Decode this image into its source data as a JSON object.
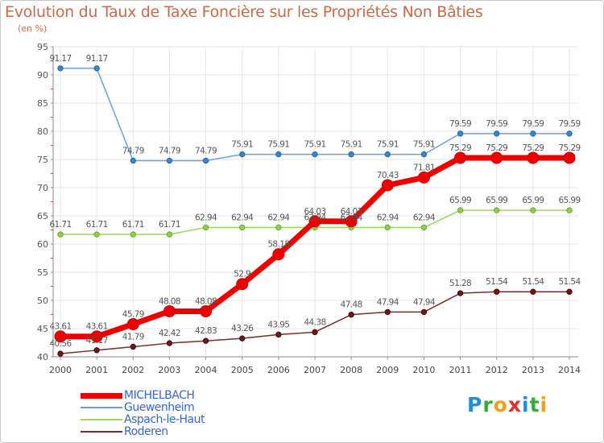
{
  "header": {
    "title": "Evolution du Taux de Taxe Foncière sur les Propriétés Non Bâties",
    "subtitle": "(en %)"
  },
  "logo": {
    "text": "Proxiti",
    "colors": [
      "#1f8fd6",
      "#3aa83a",
      "#f0a020",
      "#e03030",
      "#1f8fd6",
      "#3aa83a",
      "#f0a020"
    ]
  },
  "chart_data": {
    "type": "line",
    "title": "Evolution du Taux de Taxe Foncière sur les Propriétés Non Bâties",
    "ylabel": "(en %)",
    "xlabel": "",
    "x": [
      "2000",
      "2001",
      "2002",
      "2003",
      "2004",
      "2005",
      "2006",
      "2007",
      "2008",
      "2009",
      "2010",
      "2011",
      "2012",
      "2013",
      "2014"
    ],
    "ylim": [
      40,
      95
    ],
    "yticks": [
      40,
      45,
      50,
      55,
      60,
      65,
      70,
      75,
      80,
      85,
      90,
      95
    ],
    "grid": true,
    "series": [
      {
        "name": "MICHELBACH",
        "color": "#ee0000",
        "values": [
          43.61,
          43.61,
          45.79,
          48.08,
          48.08,
          52.9,
          58.18,
          64.03,
          64.03,
          70.43,
          71.81,
          75.29,
          75.29,
          75.29,
          75.29
        ],
        "labels": [
          "43.61",
          "43.61",
          "45.79",
          "48.08",
          "48.08",
          "52.9",
          "58.18",
          "64.03",
          "64.03",
          "70.43",
          "71.81",
          "75.29",
          "75.29",
          "75.29",
          "75.29"
        ]
      },
      {
        "name": "Guewenheim",
        "color": "#6c9fd6",
        "values": [
          91.17,
          91.17,
          74.79,
          74.79,
          74.79,
          75.91,
          75.91,
          75.91,
          75.91,
          75.91,
          75.91,
          79.59,
          79.59,
          79.59,
          79.59
        ],
        "labels": [
          "91.17",
          "91.17",
          "74.79",
          "74.79",
          "74.79",
          "75.91",
          "75.91",
          "75.91",
          "75.91",
          "75.91",
          "75.91",
          "79.59",
          "79.59",
          "79.59",
          "79.59"
        ]
      },
      {
        "name": "Aspach-le-Haut",
        "color": "#9cd65a",
        "values": [
          61.71,
          61.71,
          61.71,
          61.71,
          62.94,
          62.94,
          62.94,
          62.94,
          62.94,
          62.94,
          62.94,
          65.99,
          65.99,
          65.99,
          65.99
        ],
        "labels": [
          "61.71",
          "61.71",
          "61.71",
          "61.71",
          "62.94",
          "62.94",
          "62.94",
          "62.94",
          "62.94",
          "62.94",
          "62.94",
          "65.99",
          "65.99",
          "65.99",
          "65.99"
        ]
      },
      {
        "name": "Roderen",
        "color": "#7a2a2a",
        "values": [
          40.56,
          41.17,
          41.79,
          42.42,
          42.83,
          43.26,
          43.95,
          44.38,
          47.48,
          47.94,
          47.94,
          51.28,
          51.54,
          51.54,
          51.54
        ],
        "labels": [
          "40.56",
          "41.17",
          "41.79",
          "42.42",
          "42.83",
          "43.26",
          "43.95",
          "44.38",
          "47.48",
          "47.94",
          "47.94",
          "51.28",
          "51.54",
          "51.54",
          "51.54"
        ]
      }
    ]
  }
}
